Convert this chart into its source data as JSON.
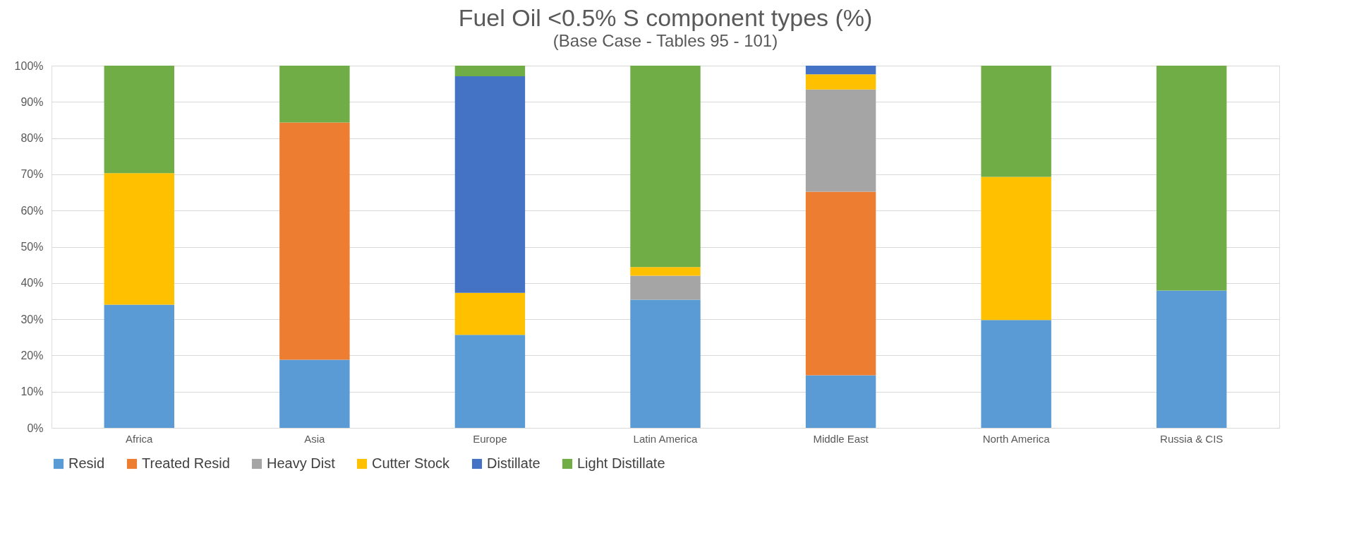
{
  "chart_data": {
    "type": "bar",
    "stacked": true,
    "title": "Fuel Oil <0.5% S component types (%)",
    "subtitle": "(Base Case - Tables 95 - 101)",
    "categories": [
      "Africa",
      "Asia",
      "Europe",
      "Latin America",
      "Middle East",
      "North America",
      "Russia & CIS"
    ],
    "series": [
      {
        "name": "Resid",
        "color": "#5b9bd5",
        "values": [
          34.0,
          18.8,
          25.7,
          35.4,
          14.5,
          29.8,
          37.9
        ]
      },
      {
        "name": "Treated Resid",
        "color": "#ed7d31",
        "values": [
          0,
          65.5,
          0,
          0,
          50.7,
          0,
          0
        ]
      },
      {
        "name": "Heavy Dist",
        "color": "#a5a5a5",
        "values": [
          0,
          0,
          0,
          6.6,
          28.2,
          0,
          0
        ]
      },
      {
        "name": "Cutter Stock",
        "color": "#ffc000",
        "values": [
          36.3,
          0,
          11.6,
          2.4,
          4.2,
          39.5,
          0
        ]
      },
      {
        "name": "Distillate",
        "color": "#4472c4",
        "values": [
          0,
          0,
          59.8,
          0,
          2.4,
          0,
          0
        ]
      },
      {
        "name": "Light Distillate",
        "color": "#70ad47",
        "values": [
          29.7,
          15.7,
          2.9,
          55.6,
          0,
          30.7,
          62.1
        ]
      }
    ],
    "ylim": [
      0,
      100
    ],
    "yticks": [
      {
        "value": 0,
        "label": "0%"
      },
      {
        "value": 10,
        "label": "10%"
      },
      {
        "value": 20,
        "label": "20%"
      },
      {
        "value": 30,
        "label": "30%"
      },
      {
        "value": 40,
        "label": "40%"
      },
      {
        "value": 50,
        "label": "50%"
      },
      {
        "value": 60,
        "label": "60%"
      },
      {
        "value": 70,
        "label": "70%"
      },
      {
        "value": 80,
        "label": "80%"
      },
      {
        "value": 90,
        "label": "90%"
      },
      {
        "value": 100,
        "label": "100%"
      }
    ],
    "grid": "y",
    "legend": "bottom"
  }
}
